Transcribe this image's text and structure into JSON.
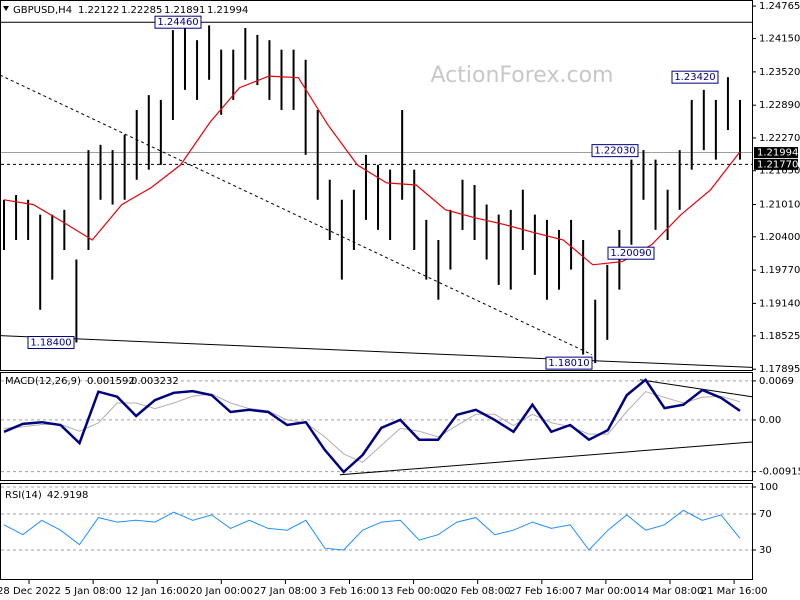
{
  "header": {
    "symbol": "GBPUSD,H4",
    "ohlc": [
      1.22122,
      1.22285,
      1.21891,
      1.21994
    ]
  },
  "watermark": "ActionForex.com",
  "chart_data": [
    {
      "type": "range-bars",
      "color": "#000000",
      "high": [
        1.211,
        1.2119,
        1.211,
        1.2082,
        1.2082,
        1.2091,
        1.1997,
        1.2204,
        1.2214,
        1.2204,
        1.2233,
        1.228,
        1.2308,
        1.2299,
        1.2431,
        1.2446,
        1.2412,
        1.244,
        1.2394,
        1.2394,
        1.2435,
        1.2422,
        1.2412,
        1.2394,
        1.2394,
        1.2375,
        1.228,
        1.2148,
        1.211,
        1.2129,
        1.2195,
        1.2176,
        1.2167,
        1.228,
        1.2167,
        1.2072,
        1.2034,
        1.2091,
        1.2148,
        1.2138,
        1.2101,
        1.2082,
        1.2091,
        1.2129,
        1.2082,
        1.2072,
        1.2053,
        1.2072,
        1.2034,
        1.1921,
        1.1987,
        1.2053,
        1.2186,
        1.2204,
        1.2186,
        1.2129,
        1.2204,
        1.2299,
        1.2318,
        1.2299,
        1.2342,
        1.2299
      ],
      "low": [
        1.2015,
        1.2034,
        1.2034,
        1.1902,
        1.1959,
        1.2015,
        1.184,
        1.2015,
        1.211,
        1.2101,
        1.211,
        1.2148,
        1.2167,
        1.2176,
        1.2261,
        1.2318,
        1.2299,
        1.2337,
        1.2271,
        1.2299,
        1.2337,
        1.2327,
        1.2299,
        1.228,
        1.228,
        1.2195,
        1.211,
        1.2034,
        1.1959,
        1.2015,
        1.2072,
        1.2053,
        1.2034,
        1.211,
        1.2015,
        1.1959,
        1.1921,
        1.1978,
        1.2053,
        1.2034,
        1.1997,
        1.1949,
        1.194,
        1.2015,
        1.1968,
        1.1921,
        1.194,
        1.1978,
        1.1817,
        1.1801,
        1.1845,
        1.194,
        1.2025,
        1.211,
        1.2053,
        1.2034,
        1.2091,
        1.2167,
        1.2204,
        1.2186,
        1.2242,
        1.2186
      ],
      "ma": {
        "color": "#e8000b",
        "values": [
          1.211,
          1.2101,
          1.2068,
          1.2034,
          1.2101,
          1.2133,
          1.2176,
          1.2257,
          1.2322,
          1.2344,
          1.2341,
          1.2252,
          1.2176,
          1.2142,
          1.2138,
          1.2091,
          1.2076,
          1.2063,
          1.2048,
          1.2034,
          1.1987,
          1.1993,
          1.2025,
          1.2082,
          1.2129,
          1.2201
        ]
      },
      "ylim": [
        1.1788,
        1.2488
      ],
      "yticks": [
        1.24765,
        {
          "value": 1.2415,
          "label": "1.24150"
        },
        {
          "value": 1.2352,
          "label": "1.23520"
        },
        {
          "value": 1.2289,
          "label": "1.22890"
        },
        {
          "value": 1.2227,
          "label": "1.22270"
        },
        {
          "value": 1.2165,
          "label": "1.21650"
        },
        {
          "value": 1.2101,
          "label": "1.21010"
        },
        {
          "value": 1.204,
          "label": "1.20400"
        },
        {
          "value": 1.1977,
          "label": "1.19770"
        },
        {
          "value": 1.1914,
          "label": "1.19140"
        },
        1.18525,
        1.17895
      ],
      "last_price": 1.21994,
      "level": {
        "value": 1.2177,
        "label": "1.21770"
      },
      "annotations": [
        {
          "value": 1.2446,
          "label": "1.24460",
          "line": true
        },
        {
          "value": 1.2342,
          "label": "1.23420"
        },
        {
          "value": 1.2203,
          "label": "1.22030"
        },
        {
          "value": 1.2009,
          "label": "1.20090"
        },
        {
          "value": 1.184,
          "label": "1.18400"
        },
        {
          "value": 1.1801,
          "label": "1.18010"
        }
      ],
      "trendlines": [
        {
          "color": "#000000",
          "dashed": true,
          "values": [
            1.2346,
            1.1817
          ]
        },
        {
          "color": "#000000",
          "dashed": false,
          "values": [
            1.1853,
            1.1793
          ]
        }
      ]
    },
    {
      "type": "line",
      "title": "MACD(12,26,9)",
      "readouts": [
        0.001592,
        0.003232
      ],
      "macd": {
        "color": "#000080",
        "values": [
          -0.0021,
          -0.0007,
          -0.0004,
          -0.0009,
          -0.0041,
          0.005,
          0.0041,
          0.0007,
          0.0035,
          0.0048,
          0.0051,
          0.0044,
          0.0014,
          0.0018,
          0.0014,
          -0.0009,
          -0.0004,
          -0.0053,
          -0.0092,
          -0.0062,
          -0.0014,
          0,
          -0.0035,
          -0.0035,
          0.0009,
          0.0018,
          0,
          -0.0021,
          0.0027,
          -0.0021,
          -0.0009,
          -0.0035,
          -0.0018,
          0.0044,
          0.0071,
          0.0021,
          0.0027,
          0.0053,
          0.0039,
          0.0016
        ]
      },
      "signal": {
        "color": "#b0b0b0",
        "values": [
          -0.0015,
          -0.0012,
          -0.0008,
          -0.0008,
          -0.002,
          -0.0005,
          0.003,
          0.003,
          0.002,
          0.003,
          0.0042,
          0.0046,
          0.003,
          0.002,
          0.0016,
          0,
          -0.0005,
          -0.003,
          -0.006,
          -0.0075,
          -0.0045,
          -0.0015,
          -0.002,
          -0.003,
          -0.001,
          0.001,
          0.001,
          -0.001,
          0.001,
          -0.0005,
          -0.0012,
          -0.0025,
          -0.0025,
          0.0015,
          0.005,
          0.004,
          0.003,
          0.004,
          0.0042,
          0.0032
        ]
      },
      "ylim": [
        -0.0108,
        0.0083
      ],
      "yticks": [
        0.0069,
        {
          "value": 0,
          "label": "0.00"
        },
        -0.009151
      ],
      "grid": true,
      "trendlines": [
        {
          "color": "#000000",
          "dashed": false,
          "values": [
            0.0071,
            0.0041
          ]
        },
        {
          "color": "#000000",
          "dashed": false,
          "values": [
            -0.0097,
            -0.0039
          ]
        }
      ]
    },
    {
      "type": "line",
      "title": "RSI(14)",
      "readouts": [
        42.9198
      ],
      "color": "#1e90ff",
      "values": [
        58,
        47,
        63,
        52,
        36,
        66,
        61,
        63,
        61,
        72,
        63,
        69,
        54,
        63,
        54,
        52,
        63,
        32,
        30,
        52,
        61,
        63,
        41,
        47,
        61,
        66,
        47,
        52,
        61,
        54,
        58,
        30,
        52,
        69,
        52,
        58,
        74,
        63,
        69,
        43
      ],
      "ylim": [
        0,
        100
      ],
      "yticks": [
        100,
        70,
        30
      ],
      "grid": true,
      "xlabels": [
        "28 Dec 2022",
        "5 Jan 08:00",
        "12 Jan 16:00",
        "20 Jan 00:00",
        "27 Jan 08:00",
        "3 Feb 16:00",
        "13 Feb 00:00",
        "20 Feb 08:00",
        "27 Feb 16:00",
        "7 Mar 00:00",
        "14 Mar 08:00",
        "21 Mar 16:00"
      ]
    }
  ]
}
